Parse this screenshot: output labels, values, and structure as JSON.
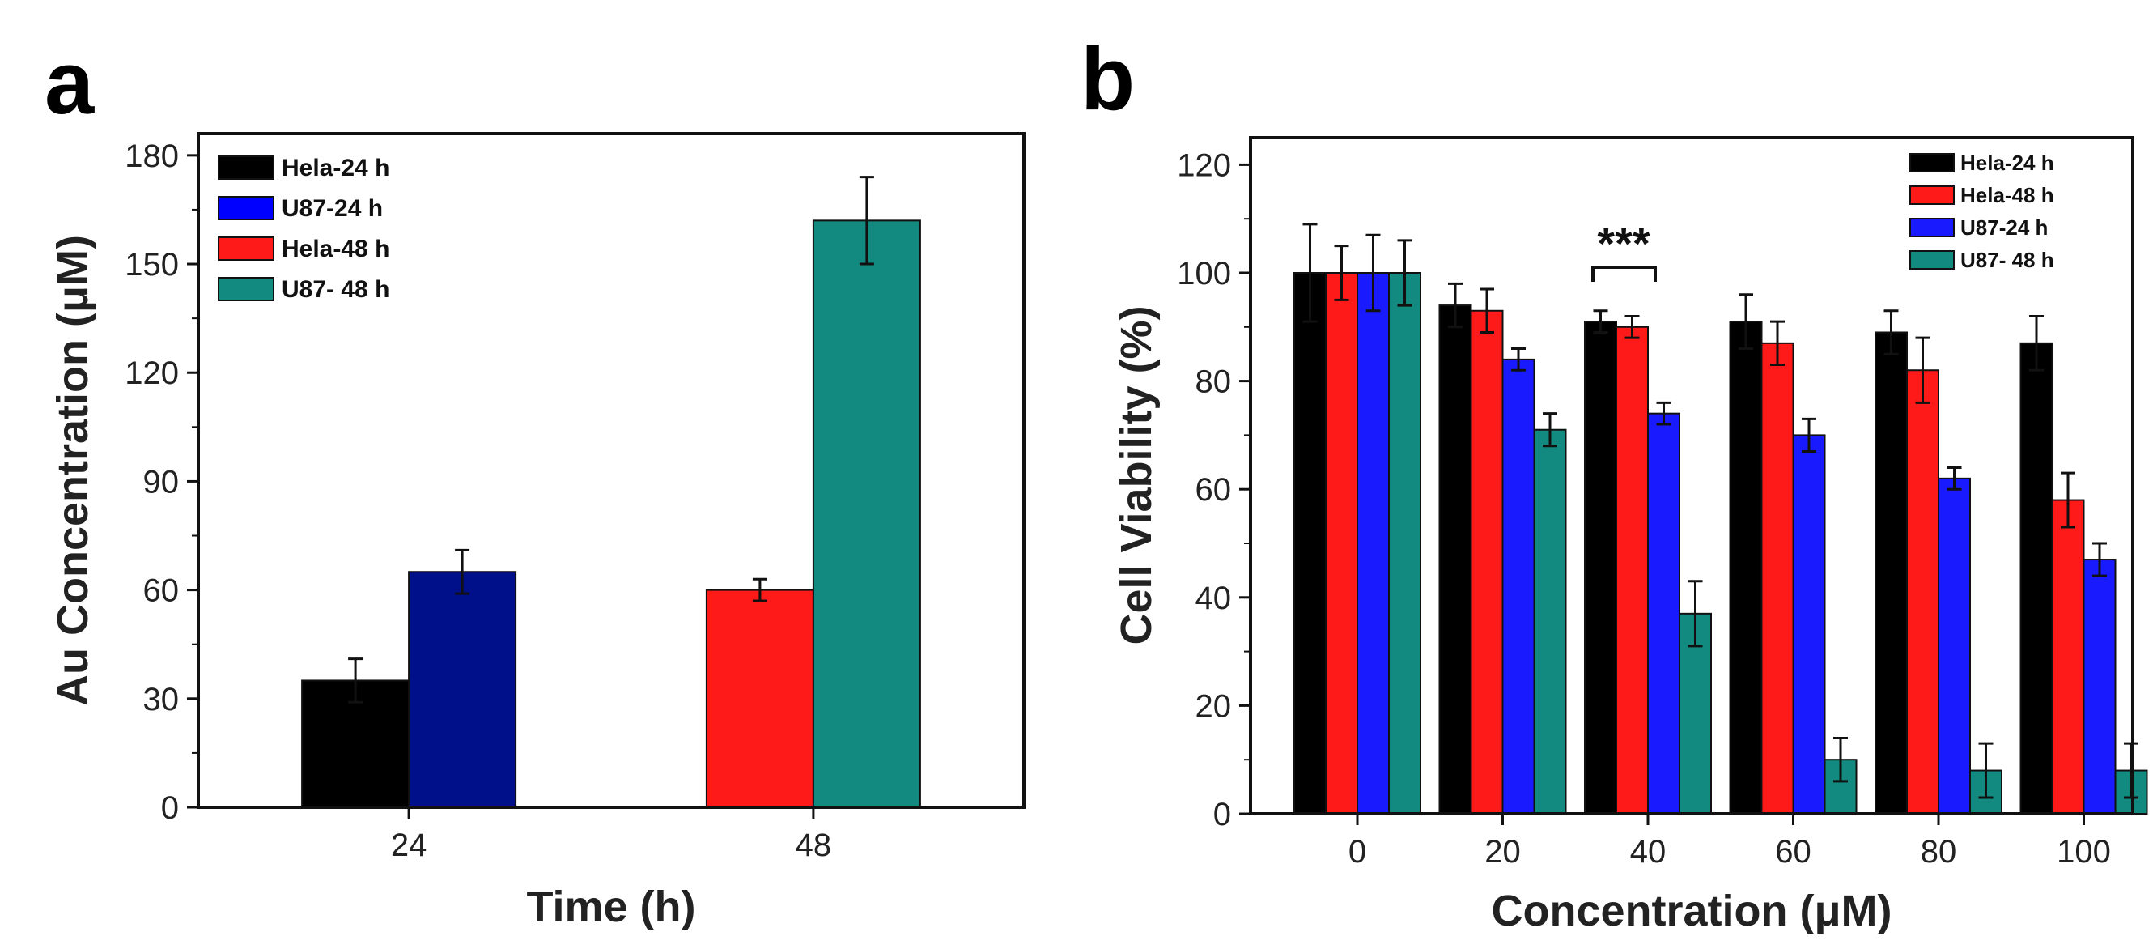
{
  "panel_a": {
    "letter": "a",
    "chart_data": {
      "type": "bar",
      "categories": [
        "24",
        "48"
      ],
      "series": [
        {
          "name": "Hela-24 h",
          "color": "#000000",
          "values": [
            35,
            null
          ],
          "errors": [
            6,
            null
          ]
        },
        {
          "name": "U87-24 h",
          "color": "#00108a",
          "values": [
            65,
            null
          ],
          "errors": [
            6,
            null
          ]
        },
        {
          "name": "Hela-48 h",
          "color": "#ff1a1a",
          "values": [
            null,
            60
          ],
          "errors": [
            null,
            3
          ]
        },
        {
          "name": "U87- 48 h",
          "color": "#138a80",
          "values": [
            null,
            162
          ],
          "errors": [
            null,
            12
          ]
        }
      ],
      "legend_order": [
        "Hela-24 h",
        "U87-24 h",
        "Hela-48 h",
        "U87- 48 h"
      ],
      "legend_colors": [
        "#000000",
        "#0000ff",
        "#ff1a1a",
        "#138a80"
      ],
      "xlabel": "Time (h)",
      "ylabel": "Au Concentration (μM)",
      "ylim": [
        0,
        186
      ],
      "yticks": [
        "0",
        "30",
        "60",
        "90",
        "120",
        "150",
        "180"
      ],
      "legend_position": "top-left",
      "grid": false
    }
  },
  "panel_b": {
    "letter": "b",
    "chart_data": {
      "type": "bar",
      "categories": [
        "0",
        "20",
        "40",
        "60",
        "80",
        "100"
      ],
      "series": [
        {
          "name": "Hela-24 h",
          "color": "#000000",
          "values": [
            100,
            94,
            91,
            91,
            89,
            87
          ],
          "errors": [
            9,
            4,
            2,
            5,
            4,
            5
          ]
        },
        {
          "name": "Hela-48 h",
          "color": "#ff1a1a",
          "values": [
            100,
            93,
            90,
            87,
            82,
            58
          ],
          "errors": [
            5,
            4,
            2,
            4,
            6,
            5
          ]
        },
        {
          "name": "U87-24 h",
          "color": "#1a1aff",
          "values": [
            100,
            84,
            74,
            70,
            62,
            47
          ],
          "errors": [
            7,
            2,
            2,
            3,
            2,
            3
          ]
        },
        {
          "name": "U87- 48 h",
          "color": "#138a80",
          "values": [
            100,
            71,
            37,
            10,
            8,
            8
          ],
          "errors": [
            6,
            3,
            6,
            4,
            5,
            5
          ]
        }
      ],
      "xlabel": "Concentration (μM)",
      "ylabel": "Cell Viability (%)",
      "ylim": [
        0,
        125
      ],
      "yticks": [
        "0",
        "20",
        "40",
        "60",
        "80",
        "100",
        "120"
      ],
      "legend_position": "top-right",
      "grid": false,
      "annotation": "***"
    }
  }
}
